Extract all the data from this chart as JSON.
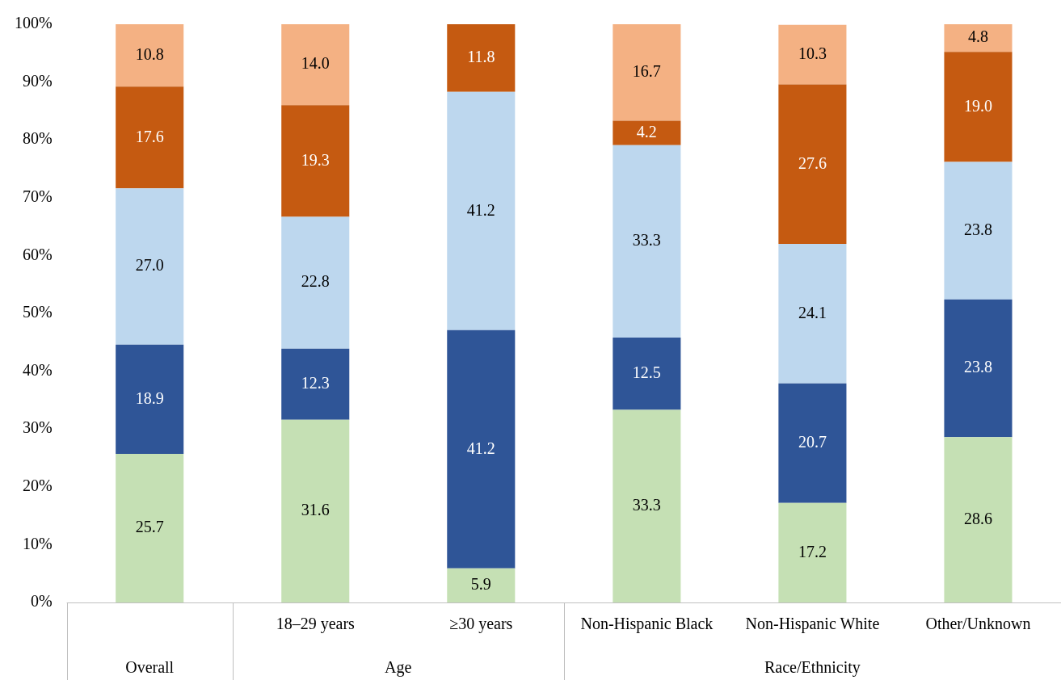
{
  "chart_data": {
    "type": "bar",
    "stacked": true,
    "categories": [
      null,
      "18–29 years",
      "≥30 years",
      "Non-Hispanic Black",
      "Non-Hispanic White",
      "Other/Unknown"
    ],
    "series": [
      {
        "color": "#c5e0b4",
        "values": [
          25.7,
          31.6,
          5.9,
          33.3,
          17.2,
          28.6
        ],
        "value_labels": [
          "25.7",
          "31.6",
          "5.9",
          "33.3",
          "17.2",
          "28.6"
        ]
      },
      {
        "color": "#2f5597",
        "values": [
          18.9,
          12.3,
          41.2,
          12.5,
          20.7,
          23.8
        ],
        "value_labels": [
          "18.9",
          "12.3",
          "41.2",
          "12.5",
          "20.7",
          "23.8"
        ]
      },
      {
        "color": "#bdd7ee",
        "values": [
          27.0,
          22.8,
          41.2,
          33.3,
          24.1,
          23.8
        ],
        "value_labels": [
          "27.0",
          "22.8",
          "41.2",
          "33.3",
          "24.1",
          "23.8"
        ]
      },
      {
        "color": "#c55a11",
        "values": [
          17.6,
          19.3,
          11.8,
          4.2,
          27.6,
          19.0
        ],
        "value_labels": [
          "17.6",
          "19.3",
          "11.8",
          "4.2",
          "27.6",
          "19.0"
        ]
      },
      {
        "color": "#f4b183",
        "values": [
          10.8,
          14.0,
          null,
          16.7,
          10.3,
          4.8
        ],
        "value_labels": [
          "10.8",
          "14.0",
          null,
          "16.7",
          "10.3",
          "4.8"
        ]
      }
    ],
    "ylim": [
      0,
      100
    ],
    "yticks": [
      {
        "value": 0,
        "label": "0%"
      },
      {
        "value": 10,
        "label": "10%"
      },
      {
        "value": 20,
        "label": "20%"
      },
      {
        "value": 30,
        "label": "30%"
      },
      {
        "value": 40,
        "label": "40%"
      },
      {
        "value": 50,
        "label": "50%"
      },
      {
        "value": 60,
        "label": "60%"
      },
      {
        "value": 70,
        "label": "70%"
      },
      {
        "value": 80,
        "label": "80%"
      },
      {
        "value": 90,
        "label": "90%"
      },
      {
        "value": 100,
        "label": "100%"
      }
    ],
    "grid": false,
    "legend": false,
    "annotations": [
      "Overall",
      "Age",
      "Race/Ethnicity"
    ]
  }
}
